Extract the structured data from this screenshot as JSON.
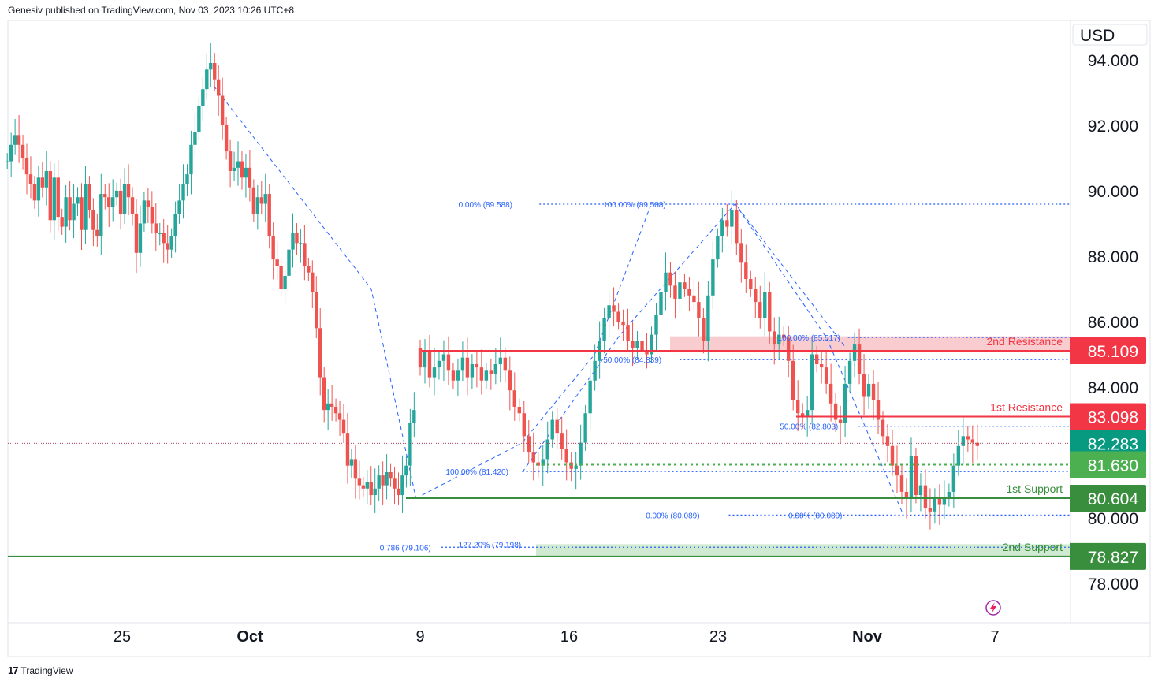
{
  "header": {
    "publisher": "Genesiv published on TradingView.com, Nov 03, 2023 10:26 UTC+8"
  },
  "footer": {
    "brand": "TradingView"
  },
  "colors": {
    "up": "#26a69a",
    "down": "#ef5350",
    "resistance": "#f23645",
    "support": "#388e3c",
    "support_light": "#4caf50",
    "fib": "#2962ff",
    "current": "#089981"
  },
  "chart_data": {
    "type": "candlestick",
    "currency": "USD",
    "ylim": [
      76.8,
      95.2
    ],
    "y_ticks": [
      "94.000",
      "92.000",
      "90.000",
      "88.000",
      "86.000",
      "84.000",
      "80.000",
      "78.000"
    ],
    "x_ticks": [
      {
        "label": "25",
        "day": 0,
        "bold": false
      },
      {
        "label": "Oct",
        "day": 6,
        "bold": true
      },
      {
        "label": "9",
        "day": 14,
        "bold": false
      },
      {
        "label": "16",
        "day": 21,
        "bold": false
      },
      {
        "label": "23",
        "day": 28,
        "bold": false
      },
      {
        "label": "Nov",
        "day": 35,
        "bold": true
      },
      {
        "label": "7",
        "day": 41,
        "bold": false
      }
    ],
    "levels": [
      {
        "name": "2nd Resistance",
        "value": 85.109,
        "badge": "85.109",
        "kind": "resistance"
      },
      {
        "name": "1st Resistance",
        "value": 83.098,
        "badge": "83.098",
        "kind": "resistance"
      },
      {
        "name": "",
        "value": 82.283,
        "badge": "82.283",
        "kind": "current"
      },
      {
        "name": "",
        "value": 81.63,
        "badge": "81.630",
        "kind": "pivot"
      },
      {
        "name": "1st Support",
        "value": 80.604,
        "badge": "80.604",
        "kind": "support"
      },
      {
        "name": "2nd Support",
        "value": 78.827,
        "badge": "78.827",
        "kind": "support"
      }
    ],
    "zones": [
      {
        "name": "2nd Resistance",
        "from": 85.109,
        "to": 85.55,
        "kind": "resistance"
      },
      {
        "name": "2nd Support",
        "from": 78.827,
        "to": 79.2,
        "kind": "support"
      }
    ],
    "fib_labels": [
      {
        "text": "0.00% (89.588)",
        "day": 15.8,
        "value": 89.588
      },
      {
        "text": "100.00% (89.588)",
        "day": 22.6,
        "value": 89.588
      },
      {
        "text": "50.00% (84.839)",
        "day": 22.6,
        "value": 84.839
      },
      {
        "text": "100.00% (81.420)",
        "day": 15.2,
        "value": 81.42
      },
      {
        "text": "100.00% (85.517)",
        "day": 30.8,
        "value": 85.517
      },
      {
        "text": "50.00% (82.803)",
        "day": 30.9,
        "value": 82.803
      },
      {
        "text": "0.00% (80.089)",
        "day": 24.6,
        "value": 80.089
      },
      {
        "text": "0.00% (80.089)",
        "day": 31.3,
        "value": 80.089
      },
      {
        "text": "0.786 (79.106)",
        "day": 12.1,
        "value": 79.106
      },
      {
        "text": "127.20% (79.198)",
        "day": 15.8,
        "value": 79.198
      }
    ],
    "fib_lines": [
      {
        "value": 89.588,
        "from_day": 19.6,
        "to_day": 44.5
      },
      {
        "value": 84.839,
        "from_day": 26.2,
        "to_day": 44.5
      },
      {
        "value": 81.42,
        "from_day": 18.8,
        "to_day": 44.5
      },
      {
        "value": 85.517,
        "from_day": 34.1,
        "to_day": 44.5
      },
      {
        "value": 82.803,
        "from_day": 34.6,
        "to_day": 44.5
      },
      {
        "value": 80.089,
        "from_day": 28.5,
        "to_day": 44.5
      },
      {
        "value": 79.106,
        "from_day": 15.0,
        "to_day": 44.5
      }
    ],
    "trend_lines": [
      {
        "points": [
          [
            4.3,
            93.2
          ],
          [
            11.7,
            87.0
          ],
          [
            13.8,
            80.6
          ]
        ]
      },
      {
        "points": [
          [
            13.8,
            80.6
          ],
          [
            18.8,
            82.3
          ],
          [
            22.2,
            85.0
          ],
          [
            24.8,
            89.5
          ]
        ]
      },
      {
        "points": [
          [
            18.8,
            81.4
          ],
          [
            23.4,
            85.6
          ],
          [
            28.8,
            89.6
          ],
          [
            34.0,
            85.2
          ]
        ]
      },
      {
        "points": [
          [
            28.8,
            89.6
          ],
          [
            33.1,
            85.5
          ],
          [
            36.7,
            80.1
          ]
        ]
      }
    ],
    "candles": [
      [
        90.9,
        90.9,
        91.4,
        91.7,
        91.4,
        91.0,
        90.5,
        90.2,
        89.7,
        90.4,
        90.1,
        90.6,
        89.1,
        90.4,
        89.2,
        88.9,
        89.8,
        89.1,
        89.6,
        89.8,
        88.8,
        90.2,
        89.4,
        88.8,
        88.6,
        89.9,
        89.8,
        89.5,
        89.8,
        90.0,
        89.3,
        90.2,
        89.8,
        89.3,
        88.1,
        89.0,
        89.7,
        89.5,
        89.0,
        88.7,
        88.7,
        88.4,
        88.2,
        88.6,
        89.3,
        89.7,
        90.2,
        90.5,
        91.4,
        91.8,
        92.6,
        93.1,
        93.7,
        93.9,
        93.4,
        92.9,
        92.0,
        91.2,
        90.6,
        90.7,
        90.9,
        90.4,
        90.7,
        90.1,
        89.3,
        89.8,
        89.6,
        89.9,
        88.6,
        87.9,
        87.7,
        87.0,
        87.4,
        88.2,
        88.7,
        88.4,
        88.4,
        87.7,
        87.5,
        86.9,
        85.8,
        84.3,
        83.3,
        83.5,
        83.4,
        83.2,
        83.0,
        82.6,
        81.6,
        81.8,
        81.2,
        81.0,
        80.9,
        81.1,
        80.7,
        80.9,
        81.3,
        81.0,
        81.4,
        81.2,
        80.9,
        80.7,
        81.3,
        81.6,
        82.9
      ],
      [
        90.9,
        91.4,
        91.7,
        91.4,
        91.0,
        90.5,
        90.2,
        89.7,
        90.4,
        90.1,
        90.6,
        89.1,
        90.4,
        89.2,
        88.9,
        89.8,
        89.1,
        89.6,
        89.8,
        88.8,
        90.2,
        89.4,
        88.8,
        88.6,
        89.9,
        89.8,
        89.5,
        89.8,
        90.0,
        89.3,
        90.2,
        89.8,
        89.3,
        88.1,
        89.0,
        89.7,
        89.5,
        89.0,
        88.7,
        88.7,
        88.4,
        88.2,
        88.6,
        89.3,
        89.7,
        90.2,
        90.5,
        91.4,
        91.8,
        92.6,
        93.1,
        93.7,
        93.9,
        93.4,
        92.9,
        92.0,
        91.2,
        90.6,
        90.7,
        90.9,
        90.4,
        90.7,
        90.1,
        89.3,
        89.8,
        89.6,
        89.9,
        88.6,
        87.9,
        87.7,
        87.0,
        87.4,
        88.2,
        88.7,
        88.4,
        88.4,
        87.7,
        87.5,
        86.9,
        85.8,
        84.3,
        83.3,
        83.5,
        83.4,
        83.2,
        83.0,
        82.6,
        81.6,
        81.8,
        81.2,
        81.0,
        80.9,
        81.1,
        80.7,
        80.9,
        81.3,
        81.0,
        81.4,
        81.2,
        80.9,
        80.7,
        81.3,
        81.6,
        82.9,
        83.3
      ],
      [
        85.2,
        84.6,
        85.1,
        84.3,
        84.6,
        84.8,
        85.0,
        84.5,
        84.2,
        84.5,
        84.9,
        84.3,
        84.7,
        84.6,
        84.2,
        84.5,
        84.4,
        84.7,
        84.9,
        84.5,
        83.9,
        83.4,
        83.2,
        82.5,
        82.0,
        81.7,
        81.6,
        81.8,
        82.4,
        83.0,
        82.6,
        82.1,
        81.7,
        81.5,
        81.6,
        82.3,
        83.2,
        84.2,
        84.8,
        85.4,
        86.1,
        86.5,
        86.3,
        86.0,
        85.9,
        85.4,
        85.2,
        85.4,
        85.1,
        85.0,
        85.6,
        86.2,
        86.9,
        87.5,
        87.1,
        86.7,
        87.2,
        87.0,
        86.8,
        86.6,
        86.1,
        85.4,
        86.8,
        87.9,
        88.6,
        89.1,
        88.9,
        89.4,
        88.4,
        87.8,
        87.3,
        87.0,
        86.6,
        86.1,
        86.9,
        85.7,
        85.3,
        85.6,
        85.5,
        84.8,
        83.6,
        83.2,
        83.1,
        83.3,
        85.0,
        84.7,
        84.6,
        84.1,
        83.5,
        83.0,
        82.9,
        84.1,
        84.8,
        85.3,
        84.4,
        83.7,
        84.1,
        83.6,
        83.0,
        82.5,
        82.2,
        81.6,
        81.3,
        80.8,
        80.6,
        81.9,
        80.7,
        81.0,
        80.3,
        80.2,
        80.6,
        80.4,
        80.6,
        80.8,
        81.6,
        82.2,
        82.5,
        82.4,
        82.3
      ],
      [
        84.6,
        85.1,
        84.3,
        84.6,
        84.8,
        85.0,
        84.5,
        84.2,
        84.5,
        84.9,
        84.3,
        84.7,
        84.6,
        84.2,
        84.5,
        84.4,
        84.7,
        84.9,
        84.5,
        83.9,
        83.4,
        83.2,
        82.5,
        82.0,
        81.7,
        81.6,
        81.8,
        82.4,
        83.0,
        82.6,
        82.1,
        81.7,
        81.5,
        81.6,
        82.3,
        83.2,
        84.2,
        84.8,
        85.4,
        86.1,
        86.5,
        86.3,
        86.0,
        85.9,
        85.4,
        85.2,
        85.4,
        85.1,
        85.0,
        85.6,
        86.2,
        86.9,
        87.5,
        87.1,
        86.7,
        87.2,
        87.0,
        86.8,
        86.6,
        86.1,
        85.4,
        86.8,
        87.9,
        88.6,
        89.1,
        88.9,
        89.4,
        88.4,
        87.8,
        87.3,
        87.0,
        86.6,
        86.1,
        86.9,
        85.7,
        85.3,
        85.6,
        85.5,
        84.8,
        83.6,
        83.2,
        83.1,
        83.3,
        85.0,
        84.7,
        84.6,
        84.1,
        83.5,
        83.0,
        82.9,
        84.1,
        84.8,
        85.3,
        84.4,
        83.7,
        84.1,
        83.6,
        83.0,
        82.5,
        82.2,
        81.6,
        81.3,
        80.8,
        80.6,
        81.9,
        80.7,
        81.0,
        80.3,
        80.2,
        80.6,
        80.4,
        80.6,
        80.8,
        81.6,
        82.2,
        82.5,
        82.4,
        82.3,
        82.2
      ]
    ]
  }
}
